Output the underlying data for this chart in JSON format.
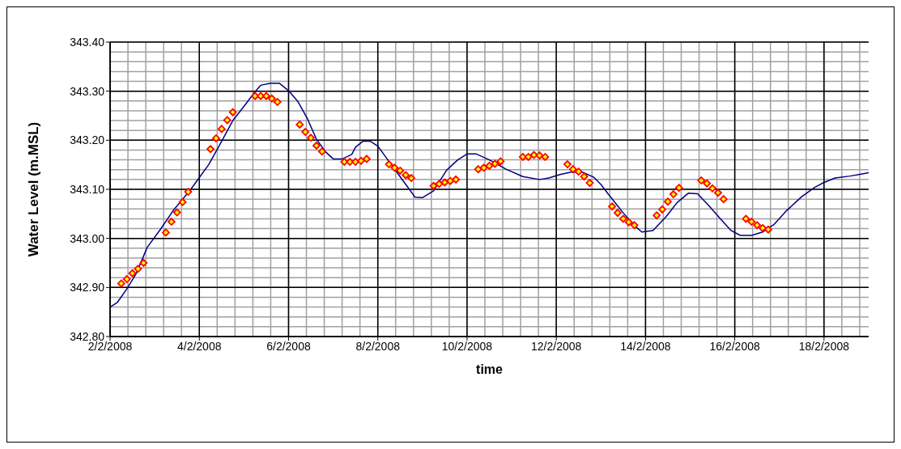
{
  "chart_data": {
    "type": "line",
    "xlabel": "time",
    "ylabel": "Water Level (m.MSL)",
    "xlim": [
      "2008-02-02",
      "2008-02-19"
    ],
    "xticks": [
      {
        "value": "2008-02-02",
        "label": "2/2/2008"
      },
      {
        "value": "2008-02-04",
        "label": "4/2/2008"
      },
      {
        "value": "2008-02-06",
        "label": "6/2/2008"
      },
      {
        "value": "2008-02-08",
        "label": "8/2/2008"
      },
      {
        "value": "2008-02-10",
        "label": "10/2/2008"
      },
      {
        "value": "2008-02-12",
        "label": "12/2/2008"
      },
      {
        "value": "2008-02-14",
        "label": "14/2/2008"
      },
      {
        "value": "2008-02-16",
        "label": "16/2/2008"
      },
      {
        "value": "2008-02-18",
        "label": "18/2/2008"
      }
    ],
    "ylim": [
      342.8,
      343.4
    ],
    "yticks": [
      {
        "value": 342.8,
        "label": "342.80"
      },
      {
        "value": 342.9,
        "label": "342.90"
      },
      {
        "value": 343.0,
        "label": "343.00"
      },
      {
        "value": 343.1,
        "label": "343.10"
      },
      {
        "value": 343.2,
        "label": "343.20"
      },
      {
        "value": 343.3,
        "label": "343.30"
      },
      {
        "value": 343.4,
        "label": "343.40"
      }
    ],
    "grid": true,
    "series": [
      {
        "marker": "none",
        "line_style": "solid",
        "color": "#000080",
        "x": [
          "2008-02-02T00:00",
          "2008-02-02T04:00",
          "2008-02-02T09:00",
          "2008-02-02T14:00",
          "2008-02-02T20:00",
          "2008-02-03T03:00",
          "2008-02-03T10:00",
          "2008-02-03T19:00",
          "2008-02-04T00:00",
          "2008-02-04T05:00",
          "2008-02-04T11:00",
          "2008-02-04T18:00",
          "2008-02-05T00:00",
          "2008-02-05T06:00",
          "2008-02-05T09:00",
          "2008-02-05T14:00",
          "2008-02-05T19:00",
          "2008-02-06T00:00",
          "2008-02-06T05:00",
          "2008-02-06T10:00",
          "2008-02-06T15:00",
          "2008-02-06T20:00",
          "2008-02-07T00:00",
          "2008-02-07T05:00",
          "2008-02-07T10:00",
          "2008-02-07T12:00",
          "2008-02-07T16:00",
          "2008-02-07T20:00",
          "2008-02-08T00:00",
          "2008-02-08T05:00",
          "2008-02-08T11:00",
          "2008-02-08T16:00",
          "2008-02-08T20:00",
          "2008-02-09T00:00",
          "2008-02-09T06:00",
          "2008-02-09T13:00",
          "2008-02-09T19:00",
          "2008-02-10T00:00",
          "2008-02-10T05:00",
          "2008-02-10T12:00",
          "2008-02-10T21:00",
          "2008-02-11T06:00",
          "2008-02-11T15:00",
          "2008-02-11T20:00",
          "2008-02-12T02:00",
          "2008-02-12T08:00",
          "2008-02-12T14:00",
          "2008-02-12T20:00",
          "2008-02-13T00:00",
          "2008-02-13T04:00",
          "2008-02-13T12:00",
          "2008-02-13T18:00",
          "2008-02-13T22:00",
          "2008-02-14T04:00",
          "2008-02-14T11:00",
          "2008-02-14T17:00",
          "2008-02-14T23:00",
          "2008-02-15T04:00",
          "2008-02-15T10:00",
          "2008-02-15T16:00",
          "2008-02-15T22:00",
          "2008-02-16T03:00",
          "2008-02-16T09:00",
          "2008-02-16T15:00",
          "2008-02-16T21:00",
          "2008-02-17T04:00",
          "2008-02-17T12:00",
          "2008-02-17T19:00",
          "2008-02-18T00:00",
          "2008-02-18T06:00",
          "2008-02-18T14:00",
          "2008-02-18T20:00",
          "2008-02-19T00:00"
        ],
        "values": [
          342.86,
          342.87,
          342.897,
          342.928,
          342.982,
          343.018,
          343.057,
          343.098,
          343.124,
          343.15,
          343.191,
          343.24,
          343.269,
          343.299,
          343.312,
          343.316,
          343.316,
          343.301,
          343.279,
          343.245,
          343.202,
          343.176,
          343.162,
          343.162,
          343.171,
          343.186,
          343.198,
          343.198,
          343.188,
          343.162,
          343.131,
          343.105,
          343.084,
          343.083,
          343.097,
          343.139,
          343.16,
          343.172,
          343.172,
          343.16,
          343.141,
          343.126,
          343.12,
          343.123,
          343.13,
          343.135,
          343.135,
          343.125,
          343.11,
          343.09,
          343.052,
          343.026,
          343.013,
          343.016,
          343.044,
          343.073,
          343.092,
          343.091,
          343.067,
          343.041,
          343.016,
          343.006,
          343.006,
          343.013,
          343.028,
          343.057,
          343.085,
          343.104,
          343.114,
          343.123,
          343.127,
          343.131,
          343.134
        ]
      },
      {
        "type": "scatter",
        "marker": "diamond",
        "color": "#ff0000",
        "x": [
          "2008-02-02T06:00",
          "2008-02-02T09:00",
          "2008-02-02T12:00",
          "2008-02-02T15:00",
          "2008-02-02T18:00",
          "2008-02-03T06:00",
          "2008-02-03T09:00",
          "2008-02-03T12:00",
          "2008-02-03T15:00",
          "2008-02-03T18:00",
          "2008-02-04T06:00",
          "2008-02-04T09:00",
          "2008-02-04T12:00",
          "2008-02-04T15:00",
          "2008-02-04T18:00",
          "2008-02-05T06:00",
          "2008-02-05T09:00",
          "2008-02-05T12:00",
          "2008-02-05T15:00",
          "2008-02-05T18:00",
          "2008-02-06T06:00",
          "2008-02-06T09:00",
          "2008-02-06T12:00",
          "2008-02-06T15:00",
          "2008-02-06T18:00",
          "2008-02-07T06:00",
          "2008-02-07T09:00",
          "2008-02-07T12:00",
          "2008-02-07T15:00",
          "2008-02-07T18:00",
          "2008-02-08T06:00",
          "2008-02-08T09:00",
          "2008-02-08T12:00",
          "2008-02-08T15:00",
          "2008-02-08T18:00",
          "2008-02-09T06:00",
          "2008-02-09T09:00",
          "2008-02-09T12:00",
          "2008-02-09T15:00",
          "2008-02-09T18:00",
          "2008-02-10T06:00",
          "2008-02-10T09:00",
          "2008-02-10T12:00",
          "2008-02-10T15:00",
          "2008-02-10T18:00",
          "2008-02-11T06:00",
          "2008-02-11T09:00",
          "2008-02-11T12:00",
          "2008-02-11T15:00",
          "2008-02-11T18:00",
          "2008-02-12T06:00",
          "2008-02-12T09:00",
          "2008-02-12T12:00",
          "2008-02-12T15:00",
          "2008-02-12T18:00",
          "2008-02-13T06:00",
          "2008-02-13T09:00",
          "2008-02-13T12:00",
          "2008-02-13T15:00",
          "2008-02-13T18:00",
          "2008-02-14T06:00",
          "2008-02-14T09:00",
          "2008-02-14T12:00",
          "2008-02-14T15:00",
          "2008-02-14T18:00",
          "2008-02-15T06:00",
          "2008-02-15T09:00",
          "2008-02-15T12:00",
          "2008-02-15T15:00",
          "2008-02-15T18:00",
          "2008-02-16T06:00",
          "2008-02-16T09:00",
          "2008-02-16T12:00",
          "2008-02-16T15:00",
          "2008-02-16T18:00"
        ],
        "values": [
          342.908,
          342.917,
          342.929,
          342.938,
          342.95,
          343.012,
          343.034,
          343.053,
          343.074,
          343.095,
          343.182,
          343.204,
          343.223,
          343.241,
          343.257,
          343.29,
          343.29,
          343.29,
          343.285,
          343.278,
          343.232,
          343.217,
          343.205,
          343.189,
          343.177,
          343.156,
          343.156,
          343.156,
          343.158,
          343.162,
          343.151,
          343.144,
          343.138,
          343.129,
          343.123,
          343.107,
          343.111,
          343.114,
          343.117,
          343.12,
          343.141,
          343.144,
          343.148,
          343.152,
          343.157,
          343.166,
          343.166,
          343.17,
          343.169,
          343.166,
          343.151,
          343.141,
          343.136,
          343.126,
          343.113,
          343.065,
          343.052,
          343.04,
          343.033,
          343.027,
          343.047,
          343.059,
          343.075,
          343.09,
          343.103,
          343.118,
          343.112,
          343.102,
          343.093,
          343.08,
          343.04,
          343.034,
          343.027,
          343.021,
          343.018
        ]
      }
    ]
  }
}
